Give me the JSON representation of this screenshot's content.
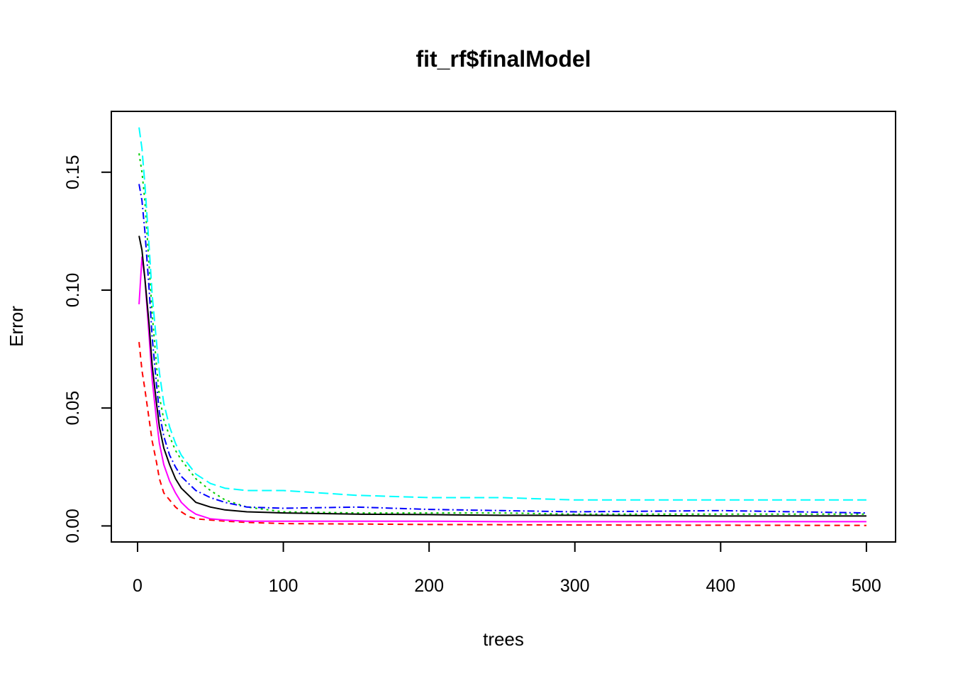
{
  "chart_data": {
    "type": "line",
    "title": "fit_rf$finalModel",
    "xlabel": "trees",
    "ylabel": "Error",
    "xlim": [
      -18,
      520
    ],
    "ylim": [
      -0.0068,
      0.1758
    ],
    "x_ticks": [
      {
        "value": 0,
        "label": "0"
      },
      {
        "value": 100,
        "label": "100"
      },
      {
        "value": 200,
        "label": "200"
      },
      {
        "value": 300,
        "label": "300"
      },
      {
        "value": 400,
        "label": "400"
      },
      {
        "value": 500,
        "label": "500"
      }
    ],
    "y_ticks": [
      {
        "value": 0.0,
        "label": "0.00"
      },
      {
        "value": 0.05,
        "label": "0.05"
      },
      {
        "value": 0.1,
        "label": "0.10"
      },
      {
        "value": 0.15,
        "label": "0.15"
      }
    ],
    "grid": false,
    "legend": "none",
    "series": [
      {
        "color": "#ff0000",
        "dash": "8,6",
        "points": [
          [
            1,
            0.078
          ],
          [
            3,
            0.066
          ],
          [
            5,
            0.058
          ],
          [
            8,
            0.045
          ],
          [
            10,
            0.036
          ],
          [
            13,
            0.027
          ],
          [
            15,
            0.02
          ],
          [
            18,
            0.014
          ],
          [
            22,
            0.011
          ],
          [
            26,
            0.008
          ],
          [
            30,
            0.006
          ],
          [
            35,
            0.004
          ],
          [
            40,
            0.003
          ],
          [
            50,
            0.0025
          ],
          [
            60,
            0.002
          ],
          [
            75,
            0.0015
          ],
          [
            100,
            0.001
          ],
          [
            150,
            0.0008
          ],
          [
            200,
            0.0006
          ],
          [
            250,
            0.0005
          ],
          [
            300,
            0.0004
          ],
          [
            400,
            0.0003
          ],
          [
            500,
            0.0002
          ]
        ]
      },
      {
        "color": "#00cd00",
        "dash": "3,5",
        "points": [
          [
            1,
            0.158
          ],
          [
            3,
            0.15
          ],
          [
            5,
            0.138
          ],
          [
            8,
            0.11
          ],
          [
            10,
            0.09
          ],
          [
            13,
            0.068
          ],
          [
            15,
            0.055
          ],
          [
            18,
            0.045
          ],
          [
            22,
            0.038
          ],
          [
            26,
            0.032
          ],
          [
            30,
            0.028
          ],
          [
            35,
            0.024
          ],
          [
            40,
            0.02
          ],
          [
            50,
            0.015
          ],
          [
            60,
            0.011
          ],
          [
            75,
            0.008
          ],
          [
            100,
            0.006
          ],
          [
            150,
            0.0055
          ],
          [
            200,
            0.0055
          ],
          [
            250,
            0.0055
          ],
          [
            300,
            0.005
          ],
          [
            400,
            0.005
          ],
          [
            500,
            0.005
          ]
        ]
      },
      {
        "color": "#0000ff",
        "dash": "10,4,2,4",
        "points": [
          [
            1,
            0.145
          ],
          [
            3,
            0.138
          ],
          [
            5,
            0.125
          ],
          [
            8,
            0.1
          ],
          [
            10,
            0.08
          ],
          [
            13,
            0.06
          ],
          [
            15,
            0.048
          ],
          [
            18,
            0.038
          ],
          [
            22,
            0.03
          ],
          [
            26,
            0.025
          ],
          [
            30,
            0.021
          ],
          [
            35,
            0.018
          ],
          [
            40,
            0.015
          ],
          [
            50,
            0.012
          ],
          [
            60,
            0.01
          ],
          [
            75,
            0.008
          ],
          [
            100,
            0.0075
          ],
          [
            150,
            0.008
          ],
          [
            200,
            0.007
          ],
          [
            250,
            0.0065
          ],
          [
            300,
            0.006
          ],
          [
            400,
            0.0065
          ],
          [
            500,
            0.0055
          ]
        ]
      },
      {
        "color": "#00ffff",
        "dash": "14,6",
        "points": [
          [
            1,
            0.169
          ],
          [
            3,
            0.16
          ],
          [
            5,
            0.145
          ],
          [
            8,
            0.118
          ],
          [
            10,
            0.098
          ],
          [
            13,
            0.078
          ],
          [
            15,
            0.065
          ],
          [
            18,
            0.052
          ],
          [
            22,
            0.042
          ],
          [
            26,
            0.035
          ],
          [
            30,
            0.03
          ],
          [
            35,
            0.026
          ],
          [
            40,
            0.022
          ],
          [
            50,
            0.018
          ],
          [
            60,
            0.016
          ],
          [
            75,
            0.015
          ],
          [
            100,
            0.015
          ],
          [
            150,
            0.013
          ],
          [
            200,
            0.012
          ],
          [
            250,
            0.012
          ],
          [
            300,
            0.011
          ],
          [
            400,
            0.011
          ],
          [
            500,
            0.011
          ]
        ]
      },
      {
        "color": "#ff00ff",
        "dash": "",
        "points": [
          [
            1,
            0.094
          ],
          [
            3,
            0.114
          ],
          [
            5,
            0.105
          ],
          [
            8,
            0.08
          ],
          [
            10,
            0.062
          ],
          [
            13,
            0.045
          ],
          [
            15,
            0.035
          ],
          [
            18,
            0.026
          ],
          [
            22,
            0.019
          ],
          [
            26,
            0.014
          ],
          [
            30,
            0.01
          ],
          [
            35,
            0.007
          ],
          [
            40,
            0.005
          ],
          [
            50,
            0.003
          ],
          [
            60,
            0.0025
          ],
          [
            75,
            0.002
          ],
          [
            100,
            0.002
          ],
          [
            150,
            0.002
          ],
          [
            200,
            0.002
          ],
          [
            250,
            0.0018
          ],
          [
            300,
            0.0018
          ],
          [
            400,
            0.0018
          ],
          [
            500,
            0.0018
          ]
        ]
      },
      {
        "color": "#000000",
        "dash": "",
        "points": [
          [
            1,
            0.123
          ],
          [
            3,
            0.117
          ],
          [
            5,
            0.105
          ],
          [
            8,
            0.085
          ],
          [
            10,
            0.068
          ],
          [
            13,
            0.052
          ],
          [
            15,
            0.042
          ],
          [
            18,
            0.033
          ],
          [
            22,
            0.026
          ],
          [
            26,
            0.02
          ],
          [
            30,
            0.016
          ],
          [
            35,
            0.013
          ],
          [
            40,
            0.01
          ],
          [
            50,
            0.008
          ],
          [
            60,
            0.0068
          ],
          [
            75,
            0.006
          ],
          [
            100,
            0.0055
          ],
          [
            150,
            0.005
          ],
          [
            200,
            0.0048
          ],
          [
            250,
            0.0045
          ],
          [
            300,
            0.0045
          ],
          [
            400,
            0.0042
          ],
          [
            500,
            0.0042
          ]
        ]
      }
    ]
  }
}
